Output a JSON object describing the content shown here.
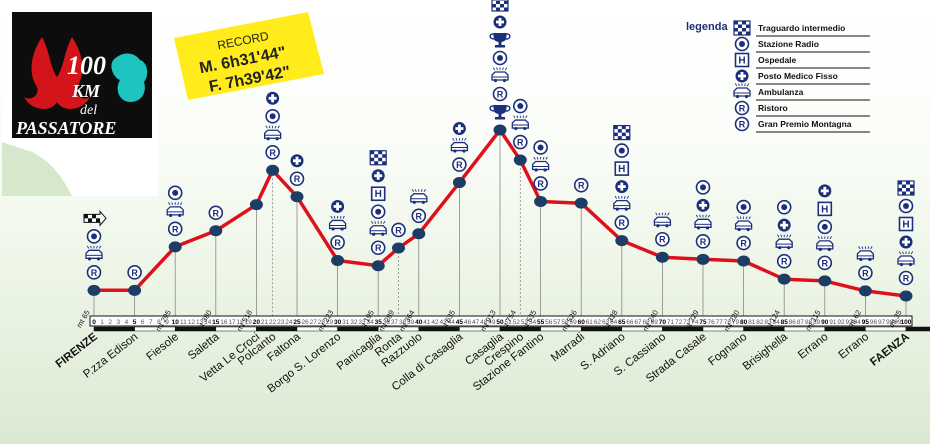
{
  "logo": {
    "number": "100",
    "km": "KM",
    "del": "del",
    "name": "PASSATORE"
  },
  "record": {
    "label": "RECORD",
    "male": "M. 6h31'44\"",
    "female": "F. 7h39'42\""
  },
  "legend": {
    "title": "legenda",
    "items": [
      {
        "icon": "checkered-flag-icon",
        "label": "Traguardo intermedio"
      },
      {
        "icon": "radio-station-icon",
        "label": "Stazione Radio"
      },
      {
        "icon": "hospital-icon",
        "label": "Ospedale"
      },
      {
        "icon": "medical-post-icon",
        "label": "Posto Medico Fisso"
      },
      {
        "icon": "ambulance-icon",
        "label": "Ambulanza"
      },
      {
        "icon": "refreshment-icon",
        "label": "Ristoro"
      },
      {
        "icon": "mountain-prize-icon",
        "label": "Gran Premio Montagna"
      }
    ]
  },
  "chart_data": {
    "type": "line",
    "xlabel": "",
    "ylabel": "",
    "x_range": [
      0,
      100
    ],
    "tick_labels": [
      "0",
      "1",
      "2",
      "3",
      "4",
      "5",
      "6",
      "7",
      "8",
      "9",
      "10",
      "11",
      "12",
      "13",
      "14",
      "15",
      "16",
      "17",
      "18",
      "19",
      "20",
      "21",
      "22",
      "23",
      "24",
      "25",
      "26",
      "27",
      "28",
      "29",
      "30",
      "31",
      "32",
      "33",
      "34",
      "35",
      "36",
      "37",
      "38",
      "39",
      "40",
      "41",
      "42",
      "43",
      "44",
      "45",
      "46",
      "47",
      "48",
      "49",
      "50",
      "51",
      "52",
      "53",
      "54",
      "55",
      "56",
      "57",
      "58",
      "59",
      "60",
      "61",
      "62",
      "63",
      "64",
      "65",
      "66",
      "67",
      "68",
      "69",
      "70",
      "71",
      "72",
      "73",
      "74",
      "75",
      "76",
      "77",
      "78",
      "79",
      "80",
      "81",
      "82",
      "83",
      "84",
      "85",
      "86",
      "87",
      "88",
      "89",
      "90",
      "91",
      "92",
      "93",
      "94",
      "95",
      "96",
      "97",
      "98",
      "99",
      "100"
    ],
    "points": [
      {
        "km": 0,
        "alt": 65,
        "name": "FIRENZE",
        "alt_label": "mt 65",
        "icons": [
          "refreshment-icon",
          "ambulance-icon",
          "radio-station-icon",
          "start-flag-icon"
        ],
        "endpoint": true
      },
      {
        "km": 5,
        "alt": 65,
        "name": "P.zza Edison",
        "alt_label": "",
        "icons": [
          "refreshment-icon"
        ]
      },
      {
        "km": 10,
        "alt": 295,
        "name": "Fiesole",
        "alt_label": "mt 295",
        "icons": [
          "refreshment-icon",
          "ambulance-icon",
          "radio-station-icon"
        ]
      },
      {
        "km": 15,
        "alt": 380,
        "name": "Saletta",
        "alt_label": "mt 380",
        "icons": [
          "refreshment-icon"
        ]
      },
      {
        "km": 20,
        "alt": 518,
        "name": "Vetta Le Croci",
        "alt_label": "mt 518",
        "icons": []
      },
      {
        "km": 22,
        "alt": 700,
        "name": "Polcanto",
        "alt_label": "",
        "icons": [
          "refreshment-icon",
          "ambulance-icon",
          "radio-station-icon",
          "medical-post-icon"
        ]
      },
      {
        "km": 25,
        "alt": 560,
        "name": "Faltona",
        "alt_label": "",
        "icons": [
          "refreshment-icon",
          "medical-post-icon"
        ]
      },
      {
        "km": 30,
        "alt": 223,
        "name": "Borgo S. Lorenzo",
        "alt_label": "mt 223",
        "icons": [
          "refreshment-icon",
          "ambulance-icon",
          "medical-post-icon"
        ]
      },
      {
        "km": 35,
        "alt": 195,
        "name": "Panicaglia",
        "alt_label": "mt 195",
        "icons": [
          "refreshment-icon",
          "ambulance-icon",
          "radio-station-icon",
          "hospital-icon",
          "medical-post-icon",
          "checkered-flag-icon"
        ]
      },
      {
        "km": 37.5,
        "alt": 289,
        "name": "Ronta",
        "alt_label": "mt 289",
        "icons": [
          "refreshment-icon"
        ]
      },
      {
        "km": 40,
        "alt": 364,
        "name": "Razzuolo",
        "alt_label": "mt 364",
        "icons": [
          "refreshment-icon",
          "ambulance-icon"
        ]
      },
      {
        "km": 45,
        "alt": 635,
        "name": "Colla di Casaglia",
        "alt_label": "mt 635",
        "icons": [
          "refreshment-icon",
          "ambulance-icon",
          "medical-post-icon"
        ]
      },
      {
        "km": 50,
        "alt": 913,
        "name": "Casaglia",
        "alt_label": "mt 913",
        "icons": [
          "mountain-prize-icon",
          "refreshment-icon",
          "ambulance-icon",
          "radio-station-icon",
          "mountain-prize-icon",
          "medical-post-icon",
          "checkered-flag-icon"
        ]
      },
      {
        "km": 52.5,
        "alt": 754,
        "name": "Crespino",
        "alt_label": "mt 754",
        "icons": [
          "refreshment-icon",
          "ambulance-icon",
          "radio-station-icon"
        ]
      },
      {
        "km": 55,
        "alt": 535,
        "name": "Stazione Fantino",
        "alt_label": "mt 535",
        "icons": [
          "refreshment-icon",
          "ambulance-icon",
          "radio-station-icon"
        ]
      },
      {
        "km": 60,
        "alt": 526,
        "name": "Marradi",
        "alt_label": "mt 526",
        "icons": [
          "refreshment-icon"
        ]
      },
      {
        "km": 65,
        "alt": 328,
        "name": "S. Adriano",
        "alt_label": "mt 328",
        "icons": [
          "refreshment-icon",
          "ambulance-icon",
          "medical-post-icon",
          "hospital-icon",
          "radio-station-icon",
          "checkered-flag-icon"
        ]
      },
      {
        "km": 70,
        "alt": 240,
        "name": "S. Cassiano",
        "alt_label": "mt 240",
        "icons": [
          "refreshment-icon",
          "ambulance-icon"
        ]
      },
      {
        "km": 75,
        "alt": 229,
        "name": "Strada Casale",
        "alt_label": "mt 229",
        "icons": [
          "refreshment-icon",
          "ambulance-icon",
          "medical-post-icon",
          "radio-station-icon"
        ]
      },
      {
        "km": 80,
        "alt": 220,
        "name": "Fognano",
        "alt_label": "mt 220",
        "icons": [
          "refreshment-icon",
          "ambulance-icon",
          "radio-station-icon"
        ]
      },
      {
        "km": 85,
        "alt": 124,
        "name": "Brisighella",
        "alt_label": "mt 124",
        "icons": [
          "refreshment-icon",
          "ambulance-icon",
          "medical-post-icon",
          "radio-station-icon"
        ]
      },
      {
        "km": 90,
        "alt": 115,
        "name": "Errano",
        "alt_label": "mt 115",
        "icons": [
          "refreshment-icon",
          "ambulance-icon",
          "radio-station-icon",
          "hospital-icon",
          "medical-post-icon"
        ]
      },
      {
        "km": 95,
        "alt": 62,
        "name": "Errano",
        "alt_label": "mt 62",
        "icons": [
          "refreshment-icon",
          "ambulance-icon"
        ]
      },
      {
        "km": 100,
        "alt": 35,
        "name": "FAENZA",
        "alt_label": "mt 35",
        "icons": [
          "refreshment-icon",
          "ambulance-icon",
          "medical-post-icon",
          "hospital-icon",
          "radio-station-icon",
          "checkered-flag-icon"
        ],
        "endpoint": true
      }
    ]
  },
  "colors": {
    "route": "#e0101b",
    "node": "#1d3c66",
    "icon": "#1b2f7a",
    "endpoint_label": "#e0101b",
    "record_bg": "#ffec1a"
  }
}
